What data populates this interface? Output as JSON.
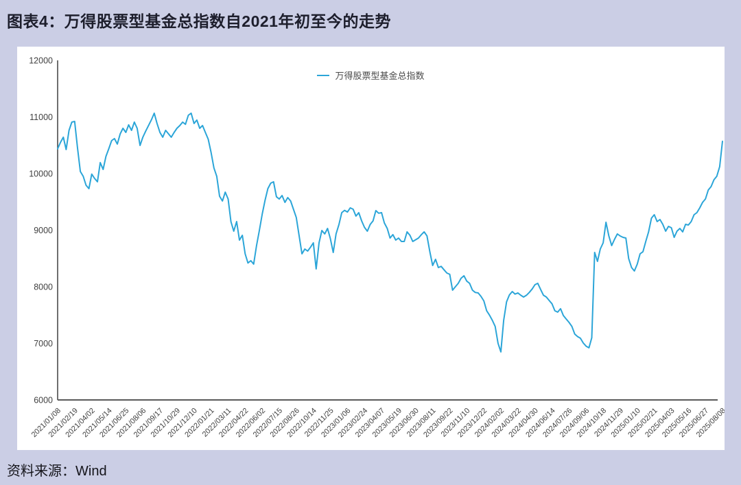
{
  "header": {
    "title": "图表4：万得股票型基金总指数自2021年初至今的走势"
  },
  "footer": {
    "source": "资料来源：Wind"
  },
  "colors": {
    "page_background": "#cbcee5",
    "panel_background": "#ffffff",
    "line": "#2ba5d8",
    "axis": "#4a4a4a",
    "tick_label": "#3f3f3f"
  },
  "chart_data": {
    "type": "line",
    "title": "",
    "legend": [
      "万得股票型基金总指数"
    ],
    "legend_position": "top-center",
    "grid": false,
    "ylim": [
      6000,
      12000
    ],
    "yticks": [
      6000,
      7000,
      8000,
      9000,
      10000,
      11000,
      12000
    ],
    "xlabel": "",
    "ylabel": "",
    "x_tick_labels": [
      "2021/01/08",
      "2021/02/19",
      "2021/04/02",
      "2021/05/14",
      "2021/06/25",
      "2021/08/06",
      "2021/09/17",
      "2021/10/29",
      "2021/12/10",
      "2022/01/21",
      "2022/03/11",
      "2022/04/22",
      "2022/06/02",
      "2022/07/15",
      "2022/08/26",
      "2022/10/14",
      "2022/11/25",
      "2023/01/06",
      "2023/02/24",
      "2023/04/07",
      "2023/05/19",
      "2023/06/30",
      "2023/08/11",
      "2023/09/22",
      "2023/11/10",
      "2023/12/22",
      "2024/02/02",
      "2024/03/22",
      "2024/04/30",
      "2024/06/14",
      "2024/07/26",
      "2024/09/06",
      "2024/10/18",
      "2024/11/29",
      "2025/01/10",
      "2025/02/21",
      "2025/04/03",
      "2025/05/16",
      "2025/06/27",
      "2025/08/08"
    ],
    "points_per_tick": 6,
    "series": [
      {
        "name": "万得股票型基金总指数",
        "color": "#2ba5d8",
        "values": [
          10436,
          10550,
          10642,
          10424,
          10764,
          10909,
          10921,
          10450,
          10036,
          9952,
          9794,
          9733,
          9990,
          9915,
          9855,
          10194,
          10073,
          10303,
          10436,
          10582,
          10618,
          10521,
          10700,
          10800,
          10727,
          10860,
          10764,
          10909,
          10800,
          10497,
          10642,
          10750,
          10850,
          10950,
          11067,
          10885,
          10727,
          10642,
          10764,
          10703,
          10642,
          10727,
          10800,
          10848,
          10909,
          10870,
          11030,
          11067,
          10885,
          10945,
          10800,
          10848,
          10727,
          10606,
          10376,
          10100,
          9952,
          9600,
          9515,
          9672,
          9550,
          9150,
          8982,
          9151,
          8824,
          8909,
          8582,
          8420,
          8461,
          8400,
          8727,
          8994,
          9285,
          9527,
          9733,
          9830,
          9855,
          9590,
          9550,
          9612,
          9491,
          9576,
          9515,
          9370,
          9225,
          8900,
          8582,
          8667,
          8630,
          8700,
          8776,
          8315,
          8776,
          8994,
          8933,
          9030,
          8850,
          8606,
          8933,
          9100,
          9309,
          9350,
          9320,
          9394,
          9370,
          9248,
          9309,
          9164,
          9050,
          8982,
          9100,
          9164,
          9345,
          9300,
          9309,
          9127,
          9030,
          8861,
          8921,
          8824,
          8861,
          8800,
          8800,
          8970,
          8909,
          8800,
          8830,
          8861,
          8920,
          8970,
          8900,
          8618,
          8376,
          8485,
          8339,
          8360,
          8300,
          8242,
          8220,
          7939,
          8000,
          8061,
          8150,
          8194,
          8100,
          8061,
          7939,
          7900,
          7891,
          7830,
          7750,
          7576,
          7500,
          7406,
          7300,
          7000,
          6848,
          7406,
          7733,
          7855,
          7915,
          7870,
          7891,
          7850,
          7818,
          7850,
          7900,
          7960,
          8036,
          8061,
          7950,
          7850,
          7818,
          7758,
          7700,
          7576,
          7552,
          7612,
          7491,
          7430,
          7370,
          7300,
          7164,
          7120,
          7091,
          7006,
          6950,
          6921,
          7100,
          8606,
          8449,
          8667,
          8776,
          9139,
          8897,
          8727,
          8836,
          8933,
          8897,
          8873,
          8861,
          8497,
          8339,
          8279,
          8400,
          8582,
          8620,
          8800,
          8970,
          9212,
          9273,
          9152,
          9188,
          9103,
          8982,
          9067,
          9043,
          8873,
          8982,
          9030,
          8970,
          9103,
          9091,
          9152,
          9273,
          9309,
          9394,
          9491,
          9552,
          9709,
          9770,
          9891,
          9952,
          10121,
          10570
        ]
      }
    ]
  }
}
